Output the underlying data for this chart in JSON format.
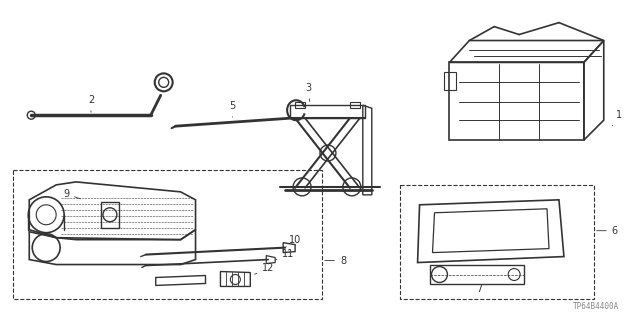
{
  "bg_color": "#ffffff",
  "line_color": "#333333",
  "part_number_text": "TP64B4400A",
  "figsize": [
    6.4,
    3.2
  ],
  "dpi": 100
}
